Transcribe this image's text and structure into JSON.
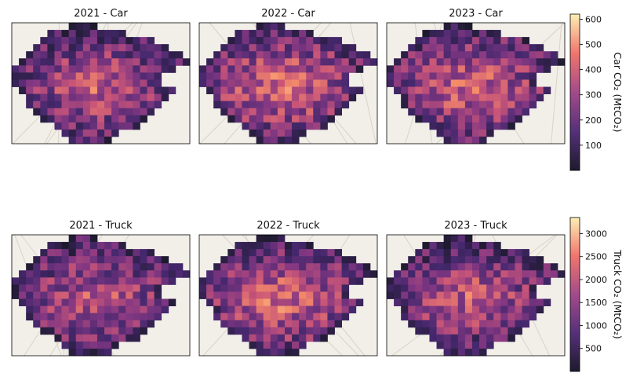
{
  "chart_data": [
    {
      "type": "heatmap",
      "title": "2021 - Car",
      "year": 2021,
      "mode": "Car",
      "seed": 11,
      "intensity": 0.62
    },
    {
      "type": "heatmap",
      "title": "2022 - Car",
      "year": 2022,
      "mode": "Car",
      "seed": 23,
      "intensity": 0.72
    },
    {
      "type": "heatmap",
      "title": "2023 - Car",
      "year": 2023,
      "mode": "Car",
      "seed": 37,
      "intensity": 0.68
    },
    {
      "type": "heatmap",
      "title": "2021 - Truck",
      "year": 2021,
      "mode": "Truck",
      "seed": 41,
      "intensity": 0.6
    },
    {
      "type": "heatmap",
      "title": "2022 - Truck",
      "year": 2022,
      "mode": "Truck",
      "seed": 53,
      "intensity": 0.7
    },
    {
      "type": "heatmap",
      "title": "2023 - Truck",
      "year": 2023,
      "mode": "Truck",
      "seed": 67,
      "intensity": 0.62
    }
  ],
  "colorbars": [
    {
      "label": "Car CO₂ (MtCO₂)",
      "min": 0,
      "max": 620,
      "ticks": [
        100,
        200,
        300,
        400,
        500,
        600
      ]
    },
    {
      "label": "Truck CO₂ (MtCO₂)",
      "min": 0,
      "max": 3350,
      "ticks": [
        500,
        1000,
        1500,
        2000,
        2500,
        3000
      ]
    }
  ],
  "colormap": "magma",
  "colors": {
    "background_map": "#f2efe9",
    "axis_frame": "#000000"
  }
}
